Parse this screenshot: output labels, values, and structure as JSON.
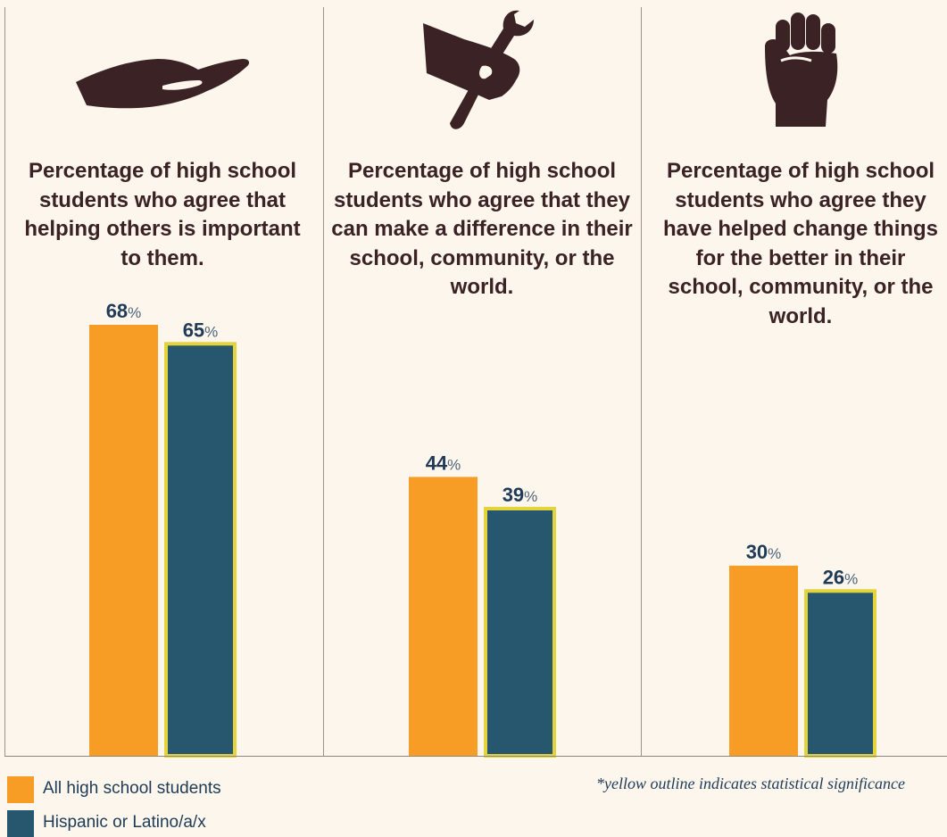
{
  "colors": {
    "all": "#f79c25",
    "hispanic": "#27566f",
    "significance_outline": "#e2d43a",
    "icon": "#3b2225",
    "background": "#fcf6ec"
  },
  "panels": [
    {
      "title": "Percentage of high school students who agree that helping others is important to them.",
      "icon": "open-hand-icon"
    },
    {
      "title": "Percentage of high school students who agree that they can make a difference in their school, community, or the world.",
      "icon": "hand-wrench-icon"
    },
    {
      "title": "Percentage of high school students who agree they have helped change things for the better in their school, community, or the world.",
      "icon": "raised-fist-icon"
    }
  ],
  "chart_data": {
    "type": "bar",
    "categories": [
      "Percentage of high school students who agree that helping others is important to them.",
      "Percentage of high school students who agree that they can make a difference in their school, community, or the world.",
      "Percentage of high school students who agree they have helped change things for the better in their school, community, or the world."
    ],
    "series": [
      {
        "name": "All high school students",
        "values": [
          68,
          44,
          30
        ],
        "significant": [
          false,
          false,
          false
        ]
      },
      {
        "name": "Hispanic or Latino/a/x",
        "values": [
          65,
          39,
          26
        ],
        "significant": [
          true,
          true,
          true
        ]
      }
    ],
    "value_suffix": "%",
    "ylim": [
      0,
      72
    ],
    "grid": false,
    "legend": "bottom-left",
    "legend_entries": [
      "All high school students",
      "Hispanic or Latino/a/x"
    ],
    "footnote": "*yellow outline indicates statistical significance"
  }
}
